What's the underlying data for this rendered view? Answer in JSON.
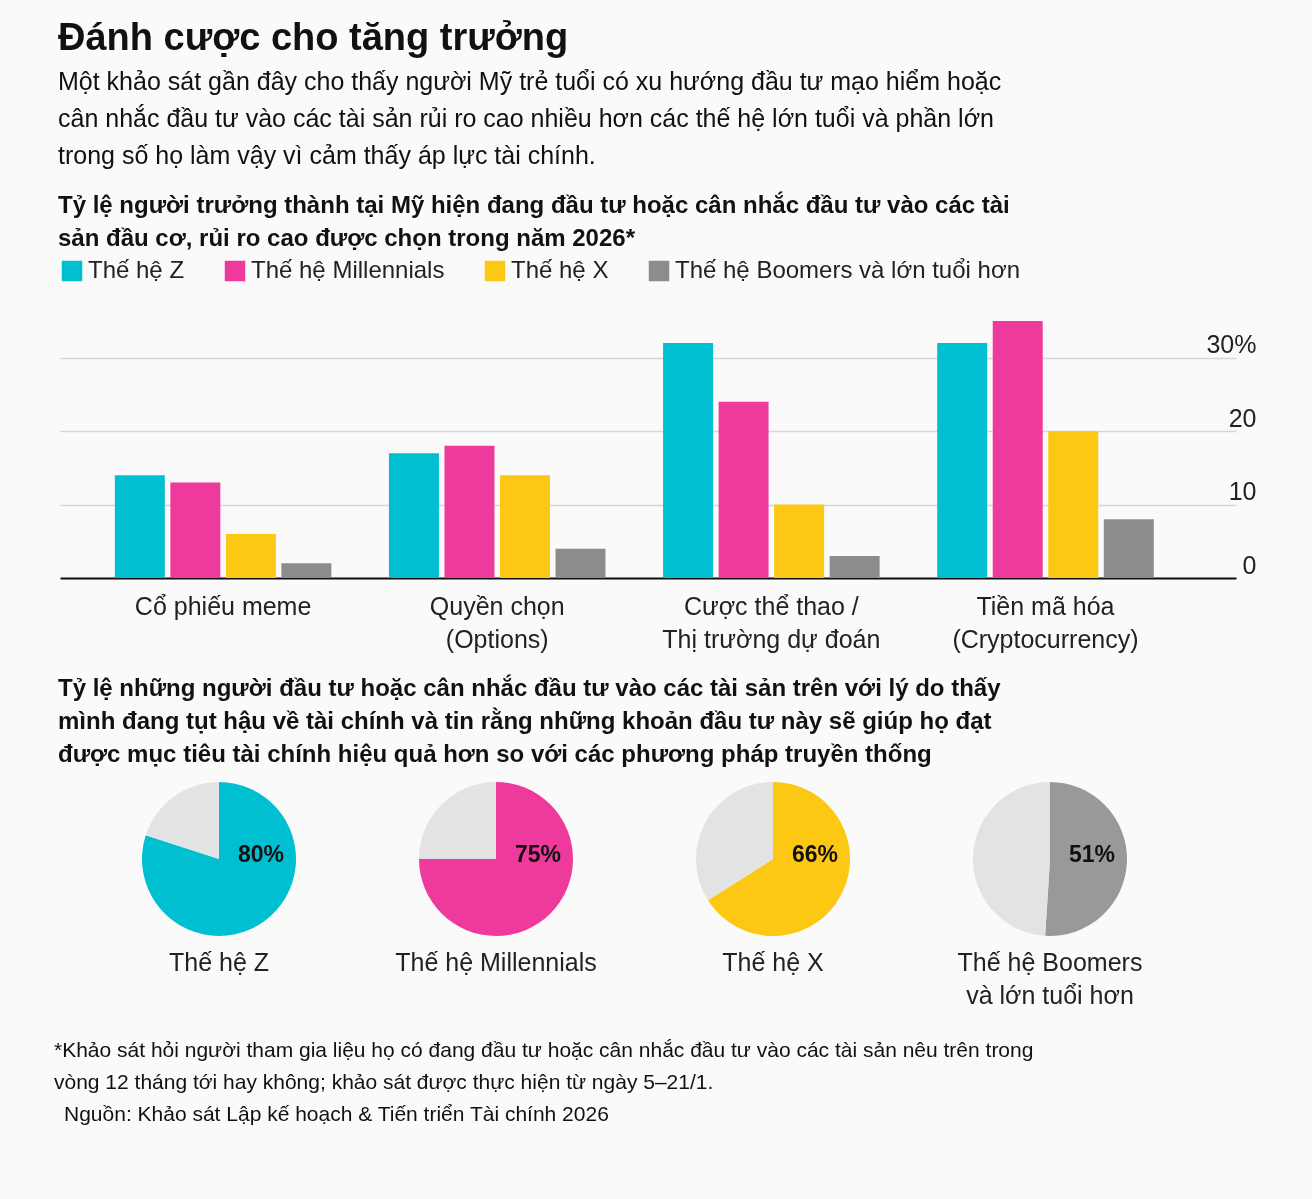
{
  "chart_data": [
    {
      "type": "bar",
      "title": "Đánh cược cho tăng trưởng",
      "subtitle": "Một khảo sát gần đây cho thấy người Mỹ trẻ tuổi có xu hướng đầu tư mạo hiểm hoặc cân nhắc đầu tư vào các tài sản rủi ro cao nhiều hơn các thế hệ lớn tuổi và phần lớn trong số họ làm vậy vì cảm thấy áp lực tài chính.",
      "annotations": [
        "Tỷ lệ người trưởng thành tại Mỹ hiện đang đầu tư hoặc cân nhắc đầu tư vào các tài sản đầu cơ, rủi ro cao được chọn trong năm 2026*",
        "*Khảo sát hỏi người tham gia liệu họ có đang đầu tư hoặc cân nhắc đầu tư vào các tài sản nêu trên trong vòng 12 tháng tới hay không; khảo sát được thực hiện từ ngày 5–21/1.",
        "Nguồn: Khảo sát Lập kế hoạch & Tiến triển Tài chính 2026"
      ],
      "categories": [
        "Cổ phiếu meme",
        "Quyền chọn\n(Options)",
        "Cược thể thao /\nThị trường dự đoán",
        "Tiền mã hóa\n(Cryptocurrency)"
      ],
      "series": [
        {
          "name": "Thế hệ Z",
          "color": "#00bfd0",
          "values": [
            14,
            17,
            32,
            32
          ]
        },
        {
          "name": "Thế hệ Millennials",
          "color": "#ee3a9c",
          "values": [
            13,
            18,
            24,
            35
          ]
        },
        {
          "name": "Thế hệ X",
          "color": "#fcc814",
          "values": [
            6,
            14,
            10,
            20
          ]
        },
        {
          "name": "Thế hệ Boomers và lớn tuổi hơn",
          "color": "#8c8c8c",
          "values": [
            2,
            4,
            3,
            8
          ]
        }
      ],
      "ylim": [
        0,
        35
      ],
      "yticks": [
        0,
        10,
        20,
        {
          "value": 30,
          "label": "30%"
        }
      ],
      "grid": "y",
      "legend": "top left"
    },
    {
      "type": "pie",
      "title": "Thế hệ Z",
      "subtitle": "Tỷ lệ những người đầu tư hoặc cân nhắc đầu tư vào các tài sản trên với lý do thấy mình đang tụt hậu về tài chính và tin rằng những khoản đầu tư này sẽ giúp họ đạt được mục tiêu tài chính hiệu quả hơn so với các phương pháp truyền thống",
      "categories": [
        null,
        null
      ],
      "values": [
        80,
        20
      ],
      "colors": [
        "#00bfd0",
        "#e3e3e3"
      ],
      "value_labels": [
        "80%",
        null
      ]
    },
    {
      "type": "pie",
      "title": "Thế hệ Millennials",
      "categories": [
        null,
        null
      ],
      "values": [
        75,
        25
      ],
      "colors": [
        "#ee3a9c",
        "#e3e3e3"
      ],
      "value_labels": [
        "75%",
        null
      ]
    },
    {
      "type": "pie",
      "title": "Thế hệ X",
      "categories": [
        null,
        null
      ],
      "values": [
        66,
        34
      ],
      "colors": [
        "#fcc814",
        "#e3e3e3"
      ],
      "value_labels": [
        "66%",
        null
      ]
    },
    {
      "type": "pie",
      "title": "Thế hệ Boomers\nvà lớn tuổi hơn",
      "categories": [
        null,
        null
      ],
      "values": [
        51,
        49
      ],
      "colors": [
        "#999999",
        "#e3e3e3"
      ],
      "value_labels": [
        "51%",
        null
      ]
    }
  ]
}
